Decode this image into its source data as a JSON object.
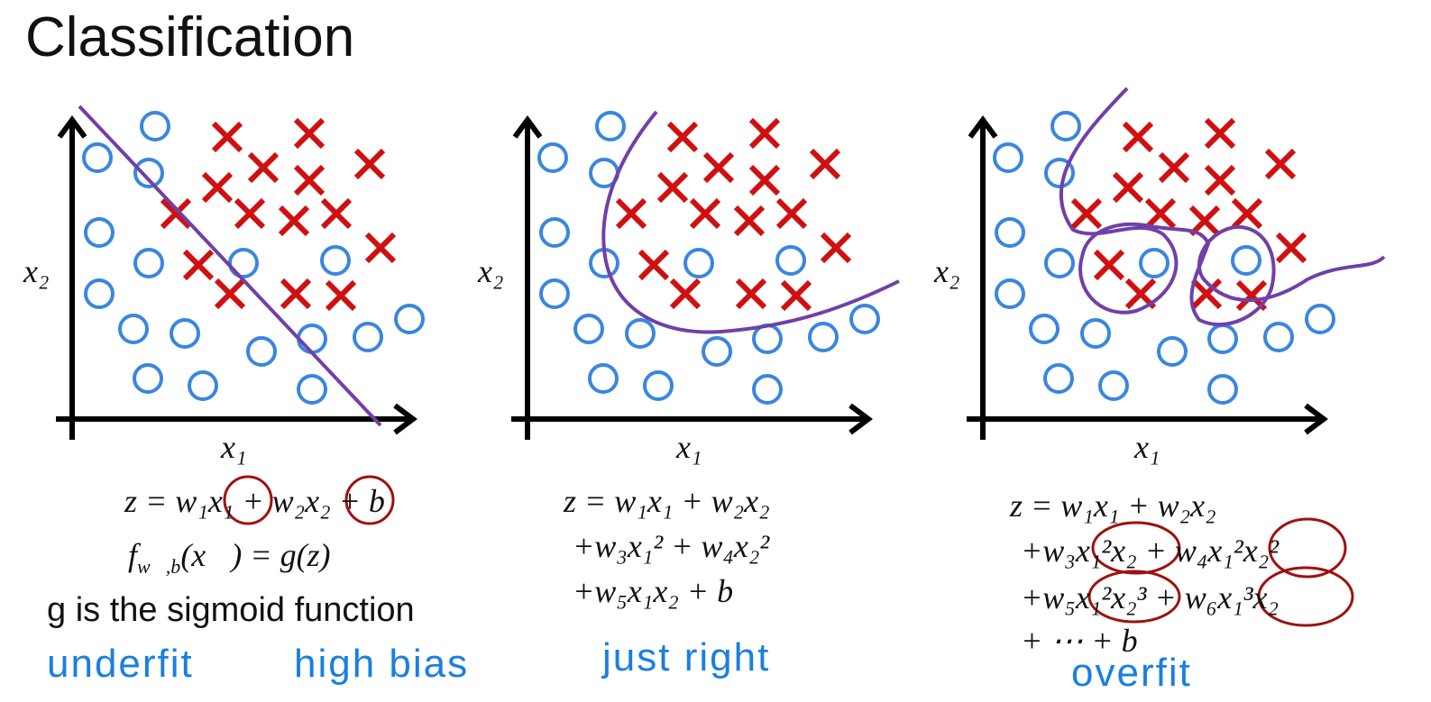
{
  "title": "Classification",
  "panels": [
    {
      "x_label": "x₁",
      "y_label": "x₂",
      "equations": [
        "z = w₁x₁ + w₂x₂ + b"
      ],
      "model": {
        "f": "f",
        "sub": "w⃗,b",
        "rest": "(x⃗) = g(z)"
      },
      "note": "g is the sigmoid function"
    },
    {
      "x_label": "x₁",
      "y_label": "x₂",
      "equations": [
        "z = w₁x₁ + w₂x₂",
        "+w₃x₁² + w₄x₂²",
        "+w₅x₁x₂ + b"
      ]
    },
    {
      "x_label": "x₁",
      "y_label": "x₂",
      "equations": [
        "z = w₁x₁ + w₂x₂",
        "+w₃x₁²x₂ + w₄x₁²x₂²",
        "+w₅x₁²x₂³ + w₆x₁³x₂",
        "+ ⋯ + b"
      ]
    }
  ],
  "annotations": [
    "underfit",
    "high bias",
    "just right",
    "overfit"
  ]
}
